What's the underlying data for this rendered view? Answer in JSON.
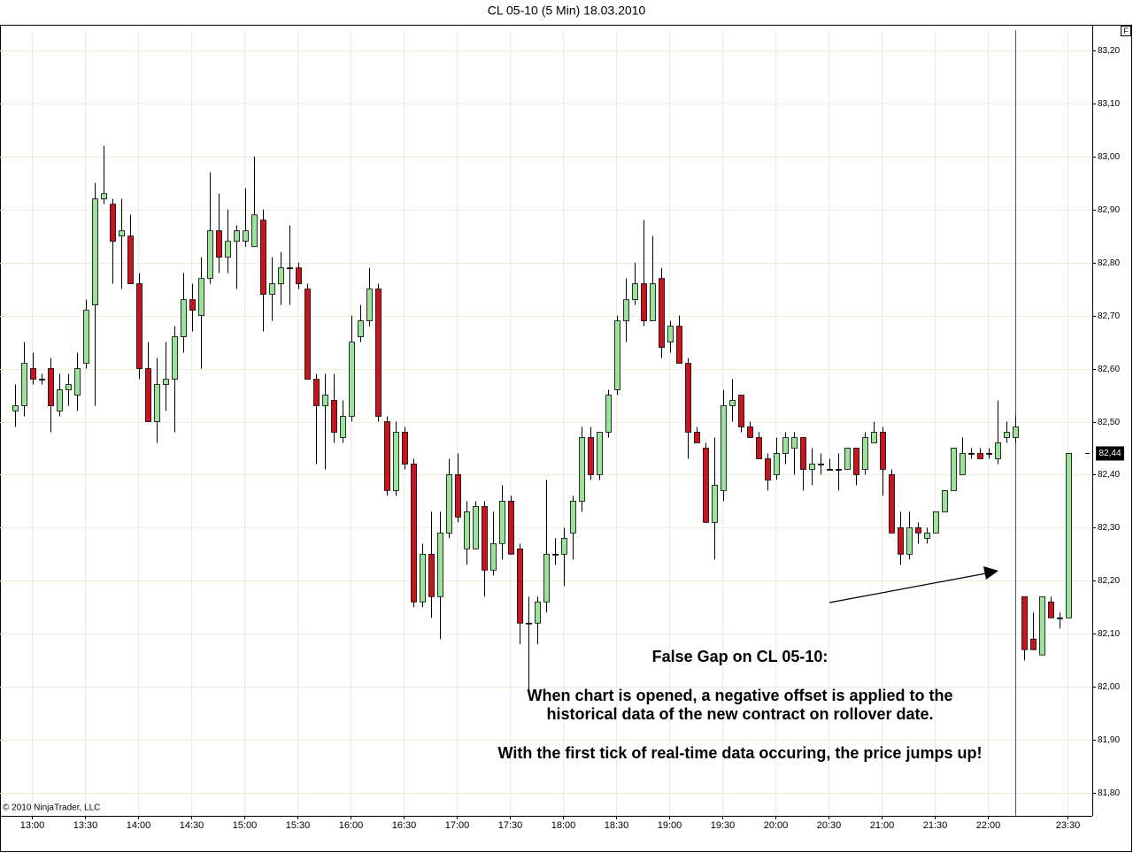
{
  "chart_data": {
    "type": "candlestick",
    "title": "CL 05-10 (5 Min)  18.03.2010",
    "copyright": "© 2010 NinjaTrader, LLC",
    "panel_button": "F",
    "annotations": [
      "False Gap on CL 05-10:",
      "When chart is opened, a negative offset is applied to the",
      "historical data of the new contract on rollover date.",
      "With the first tick of real-time data occuring, the price jumps up!"
    ],
    "categories": [
      null,
      null,
      "13:00",
      null,
      null,
      null,
      null,
      null,
      "13:30",
      null,
      null,
      null,
      null,
      null,
      "14:00",
      null,
      null,
      null,
      null,
      null,
      "14:30",
      null,
      null,
      null,
      null,
      null,
      "15:00",
      null,
      null,
      null,
      null,
      null,
      "15:30",
      null,
      null,
      null,
      null,
      null,
      "16:00",
      null,
      null,
      null,
      null,
      null,
      "16:30",
      null,
      null,
      null,
      null,
      null,
      "17:00",
      null,
      null,
      null,
      null,
      null,
      "17:30",
      null,
      null,
      null,
      null,
      null,
      "18:00",
      null,
      null,
      null,
      null,
      null,
      "18:30",
      null,
      null,
      null,
      null,
      null,
      "19:00",
      null,
      null,
      null,
      null,
      null,
      "19:30",
      null,
      null,
      null,
      null,
      null,
      "20:00",
      null,
      null,
      null,
      null,
      null,
      "20:30",
      null,
      null,
      null,
      null,
      null,
      "21:00",
      null,
      null,
      null,
      null,
      null,
      "21:30",
      null,
      null,
      null,
      null,
      null,
      "22:00",
      null,
      null,
      null,
      null,
      null,
      null,
      null,
      null,
      "23:30"
    ],
    "open": [
      82.52,
      82.53,
      82.6,
      82.58,
      82.6,
      82.52,
      82.56,
      82.55,
      82.61,
      82.72,
      82.92,
      82.91,
      82.85,
      82.85,
      82.76,
      82.6,
      82.5,
      82.57,
      82.58,
      82.66,
      82.73,
      82.7,
      82.77,
      82.86,
      82.81,
      82.84,
      82.84,
      82.83,
      82.88,
      82.74,
      82.76,
      82.79,
      82.79,
      82.75,
      82.58,
      82.53,
      82.54,
      82.47,
      82.51,
      82.66,
      82.69,
      82.75,
      82.5,
      82.37,
      82.48,
      82.42,
      82.16,
      82.25,
      82.17,
      82.29,
      82.4,
      82.26,
      82.26,
      82.34,
      82.22,
      82.27,
      82.35,
      82.26,
      82.12,
      82.12,
      82.16,
      82.25,
      82.25,
      82.29,
      82.35,
      82.47,
      82.4,
      82.48,
      82.56,
      82.69,
      82.73,
      82.76,
      82.69,
      82.77,
      82.65,
      82.68,
      82.61,
      82.48,
      82.45,
      82.31,
      82.37,
      82.53,
      82.55,
      82.49,
      82.47,
      82.43,
      82.4,
      82.44,
      82.45,
      82.47,
      82.41,
      82.42,
      82.41,
      82.41,
      82.41,
      82.45,
      82.41,
      82.46,
      82.48,
      82.4,
      82.3,
      82.25,
      82.3,
      82.28,
      82.29,
      82.33,
      82.37,
      82.4,
      82.44,
      82.44,
      82.44,
      82.43,
      82.47,
      82.47,
      82.17,
      82.09,
      82.06,
      82.16,
      82.13,
      82.13
    ],
    "high": [
      82.57,
      82.65,
      82.63,
      82.59,
      82.62,
      82.59,
      82.59,
      82.63,
      82.73,
      82.95,
      83.02,
      82.92,
      82.92,
      82.89,
      82.78,
      82.65,
      82.62,
      82.65,
      82.68,
      82.78,
      82.76,
      82.81,
      82.97,
      82.93,
      82.9,
      82.87,
      82.94,
      83.0,
      82.9,
      82.81,
      82.82,
      82.87,
      82.8,
      82.76,
      82.59,
      82.59,
      82.59,
      82.54,
      82.7,
      82.72,
      82.79,
      82.76,
      82.51,
      82.5,
      82.49,
      82.43,
      82.27,
      82.33,
      82.33,
      82.43,
      82.44,
      82.35,
      82.35,
      82.35,
      82.33,
      82.38,
      82.36,
      82.27,
      82.17,
      82.17,
      82.39,
      82.28,
      82.3,
      82.36,
      82.49,
      82.49,
      82.48,
      82.56,
      82.7,
      82.77,
      82.8,
      82.88,
      82.85,
      82.79,
      82.69,
      82.7,
      82.62,
      82.49,
      82.46,
      82.47,
      82.56,
      82.58,
      82.55,
      82.5,
      82.48,
      82.44,
      82.47,
      82.48,
      82.48,
      82.47,
      82.45,
      82.44,
      82.43,
      82.44,
      82.45,
      82.45,
      82.48,
      82.5,
      82.49,
      82.41,
      82.33,
      82.33,
      82.31,
      82.3,
      82.33,
      82.37,
      82.45,
      82.47,
      82.45,
      82.45,
      82.45,
      82.54,
      82.5,
      82.51,
      82.17,
      82.14,
      82.17,
      82.17,
      82.14,
      82.44
    ],
    "low": [
      82.49,
      82.51,
      82.57,
      82.57,
      82.48,
      82.51,
      82.53,
      82.52,
      82.6,
      82.53,
      82.91,
      82.76,
      82.75,
      82.76,
      82.58,
      82.5,
      82.46,
      82.52,
      82.48,
      82.63,
      82.67,
      82.6,
      82.76,
      82.78,
      82.78,
      82.75,
      82.83,
      82.83,
      82.67,
      82.69,
      82.72,
      82.72,
      82.75,
      82.58,
      82.42,
      82.41,
      82.46,
      82.46,
      82.5,
      82.65,
      82.68,
      82.5,
      82.36,
      82.36,
      82.41,
      82.15,
      82.15,
      82.13,
      82.09,
      82.28,
      82.31,
      82.23,
      82.26,
      82.17,
      82.21,
      82.24,
      82.25,
      82.08,
      81.99,
      82.08,
      82.14,
      82.23,
      82.19,
      82.24,
      82.33,
      82.39,
      82.39,
      82.47,
      82.55,
      82.65,
      82.72,
      82.68,
      82.69,
      82.62,
      82.63,
      82.61,
      82.43,
      82.46,
      82.31,
      82.24,
      82.35,
      82.5,
      82.48,
      82.47,
      82.43,
      82.37,
      82.39,
      82.42,
      82.4,
      82.37,
      82.38,
      82.4,
      82.41,
      82.37,
      82.41,
      82.38,
      82.4,
      82.46,
      82.36,
      82.29,
      82.23,
      82.24,
      82.27,
      82.27,
      82.29,
      82.33,
      82.37,
      82.4,
      82.43,
      82.43,
      82.43,
      82.42,
      82.46,
      82.46,
      82.05,
      82.07,
      82.06,
      82.13,
      82.11,
      82.13
    ],
    "close": [
      82.53,
      82.61,
      82.58,
      82.58,
      82.53,
      82.56,
      82.57,
      82.6,
      82.71,
      82.92,
      82.93,
      82.84,
      82.86,
      82.76,
      82.6,
      82.5,
      82.57,
      82.58,
      82.66,
      82.73,
      82.71,
      82.77,
      82.86,
      82.81,
      82.84,
      82.86,
      82.86,
      82.89,
      82.74,
      82.76,
      82.79,
      82.79,
      82.76,
      82.58,
      82.53,
      82.55,
      82.48,
      82.51,
      82.65,
      82.69,
      82.75,
      82.51,
      82.37,
      82.48,
      82.42,
      82.16,
      82.25,
      82.17,
      82.29,
      82.4,
      82.32,
      82.33,
      82.34,
      82.22,
      82.27,
      82.35,
      82.25,
      82.12,
      82.12,
      82.16,
      82.25,
      82.25,
      82.28,
      82.35,
      82.47,
      82.4,
      82.48,
      82.55,
      82.69,
      82.73,
      82.76,
      82.69,
      82.76,
      82.64,
      82.68,
      82.61,
      82.48,
      82.46,
      82.31,
      82.38,
      82.53,
      82.54,
      82.49,
      82.47,
      82.43,
      82.39,
      82.44,
      82.47,
      82.47,
      82.41,
      82.42,
      82.42,
      82.41,
      82.41,
      82.45,
      82.4,
      82.47,
      82.48,
      82.41,
      82.29,
      82.25,
      82.3,
      82.29,
      82.29,
      82.33,
      82.37,
      82.45,
      82.44,
      82.44,
      82.43,
      82.44,
      82.46,
      82.48,
      82.49,
      82.07,
      82.07,
      82.17,
      82.13,
      82.13,
      82.44
    ],
    "up_color": "#9be39b",
    "down_color": "#c8141e",
    "ylim": [
      81.75,
      83.25
    ],
    "yticks": [
      {
        "value": 81.8,
        "label": "81,80"
      },
      {
        "value": 81.9,
        "label": "81,90"
      },
      {
        "value": 82.0,
        "label": "82,00"
      },
      {
        "value": 82.1,
        "label": "82,10"
      },
      {
        "value": 82.2,
        "label": "82,20"
      },
      {
        "value": 82.3,
        "label": "82,30"
      },
      {
        "value": 82.4,
        "label": "82,40"
      },
      {
        "value": 82.5,
        "label": "82,50"
      },
      {
        "value": 82.6,
        "label": "82,60"
      },
      {
        "value": 82.7,
        "label": "82,70"
      },
      {
        "value": 82.8,
        "label": "82,80"
      },
      {
        "value": 82.9,
        "label": "82,90"
      },
      {
        "value": 83.0,
        "label": "83,00"
      },
      {
        "value": 83.1,
        "label": "83,10"
      },
      {
        "value": 83.2,
        "label": "83,20"
      }
    ],
    "last_price": {
      "value": 82.44,
      "label": "82,44"
    },
    "grid": true
  }
}
